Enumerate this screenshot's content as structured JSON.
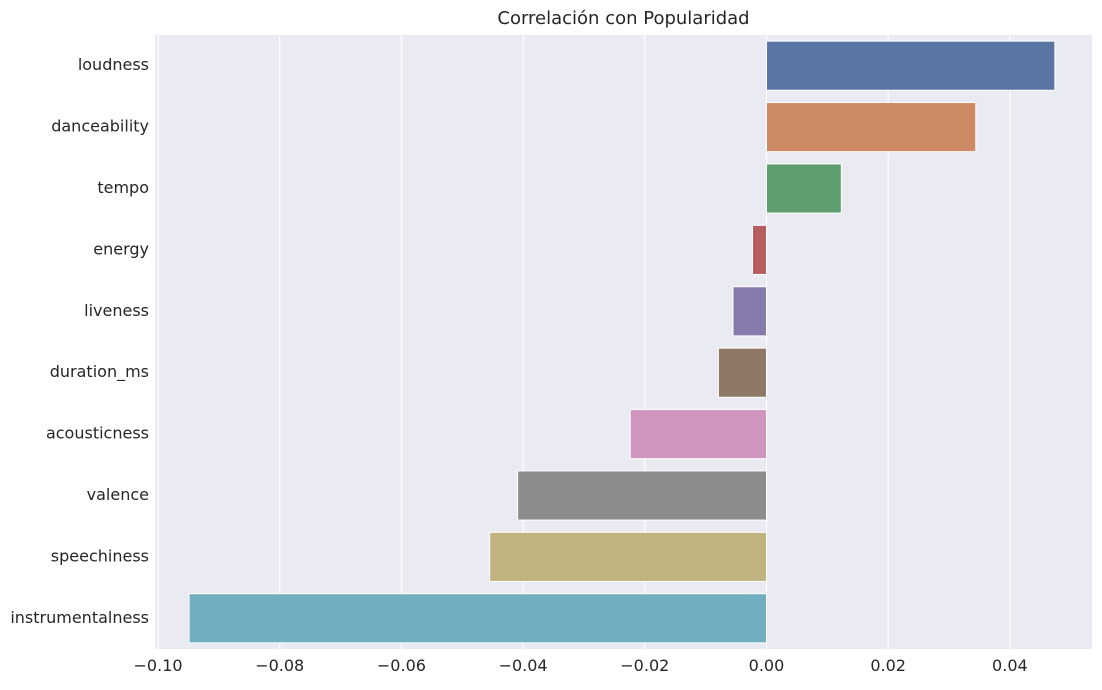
{
  "chart_data": {
    "type": "bar",
    "orientation": "horizontal",
    "title": "Correlación con Popularidad",
    "xlabel": "",
    "ylabel": "",
    "xlim": [
      -0.1005,
      0.0535
    ],
    "grid": true,
    "legend": "none",
    "categories": [
      "loudness",
      "danceability",
      "tempo",
      "energy",
      "liveness",
      "duration_ms",
      "acousticness",
      "valence",
      "speechiness",
      "instrumentalness"
    ],
    "values": [
      0.0474,
      0.0344,
      0.0123,
      -0.0023,
      -0.0055,
      -0.0079,
      -0.0224,
      -0.0409,
      -0.0455,
      -0.0949
    ],
    "colors": [
      "#5975a4",
      "#cc8963",
      "#5f9e6e",
      "#b55d60",
      "#857aab",
      "#8d7866",
      "#d095bf",
      "#8c8c8c",
      "#c1b37f",
      "#71aec0"
    ],
    "xticks": [
      "−0.10",
      "−0.08",
      "−0.06",
      "−0.04",
      "−0.02",
      "0.00",
      "0.02",
      "0.04"
    ],
    "xtick_values": [
      -0.1,
      -0.08,
      -0.06,
      -0.04,
      -0.02,
      0.0,
      0.02,
      0.04
    ],
    "background_color": "#eaeaf2",
    "grid_color": "#ffffff"
  }
}
